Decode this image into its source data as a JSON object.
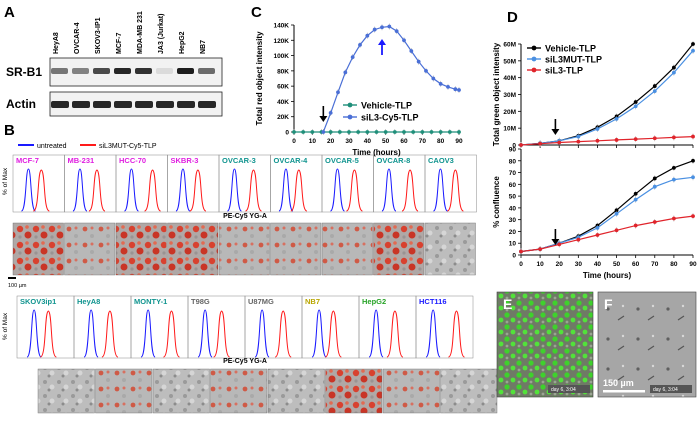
{
  "panel_letters": {
    "A": "A",
    "B": "B",
    "C": "C",
    "D": "D",
    "E": "E",
    "F": "F"
  },
  "panel_a": {
    "lanes": [
      "HeyA8",
      "OVCAR-4",
      "SKOV3-IP1",
      "MCF-7",
      "MDA-MB 231",
      "JA3 (Jurkat)",
      "HepG2",
      "NB7"
    ],
    "rows": [
      "SR-B1",
      "Actin"
    ]
  },
  "panel_b": {
    "legend": [
      {
        "label": "untreated",
        "color": "#1a1aff"
      },
      {
        "label": "siL3MUT-Cy5-TLP",
        "color": "#ff1a1a"
      }
    ],
    "y_label": "% of Max",
    "x_label": "PE-Cy5 YG-A",
    "top_cells": [
      {
        "name": "MCF-7",
        "color": "#e01ee0"
      },
      {
        "name": "MB-231",
        "color": "#e01ee0"
      },
      {
        "name": "HCC-70",
        "color": "#e01ee0"
      },
      {
        "name": "SKBR-3",
        "color": "#e01ee0"
      },
      {
        "name": "OVCAR-3",
        "color": "#10948f"
      },
      {
        "name": "OVCAR-4",
        "color": "#10948f"
      },
      {
        "name": "OVCAR-5",
        "color": "#10948f"
      },
      {
        "name": "OVCAR-8",
        "color": "#10948f"
      },
      {
        "name": "CAOV3",
        "color": "#10948f"
      }
    ],
    "bottom_cells": [
      {
        "name": "SKOV3ip1",
        "color": "#10948f"
      },
      {
        "name": "HeyA8",
        "color": "#10948f"
      },
      {
        "name": "MONTY-1",
        "color": "#10948f"
      },
      {
        "name": "T98G",
        "color": "#666666"
      },
      {
        "name": "U87MG",
        "color": "#666666"
      },
      {
        "name": "NB7",
        "color": "#b8a600"
      },
      {
        "name": "HepG2",
        "color": "#27a327"
      },
      {
        "name": "HCT116",
        "color": "#1a1aff"
      }
    ],
    "scale_label": "100 µm"
  },
  "chart_data": [
    {
      "id": "C",
      "type": "line",
      "xlabel": "Time (hours)",
      "ylabel": "Total red object intensity",
      "xlim": [
        0,
        90
      ],
      "ylim": [
        0,
        140000
      ],
      "x_ticks": [
        "0",
        "10",
        "20",
        "30",
        "40",
        "50",
        "60",
        "70",
        "80",
        "90"
      ],
      "y_ticks": [
        "0",
        "20K",
        "40K",
        "60K",
        "80K",
        "100K",
        "120K",
        "140K"
      ],
      "legend": "bottom-right",
      "series": [
        {
          "name": "Vehicle-TLP",
          "color": "#1f8f7a",
          "x": [
            0,
            5,
            10,
            15,
            20,
            25,
            30,
            35,
            40,
            45,
            50,
            55,
            60,
            65,
            70,
            75,
            80,
            85,
            90
          ],
          "y": [
            0,
            0,
            0,
            0,
            0,
            0,
            0,
            0,
            0,
            0,
            0,
            0,
            0,
            0,
            0,
            0,
            0,
            0,
            0
          ]
        },
        {
          "name": "siL3-Cy5-TLP",
          "color": "#4a6fd6",
          "x": [
            16,
            20,
            24,
            28,
            32,
            36,
            40,
            44,
            48,
            52,
            56,
            60,
            64,
            68,
            72,
            76,
            80,
            84,
            88,
            90
          ],
          "y": [
            0,
            25000,
            52000,
            78000,
            98000,
            114000,
            126000,
            134000,
            137000,
            138000,
            132000,
            120000,
            106000,
            92000,
            80000,
            70000,
            63000,
            59000,
            56000,
            55000
          ]
        }
      ],
      "annotations": [
        {
          "type": "arrow",
          "x": 16,
          "direction": "down"
        },
        {
          "type": "arrow",
          "x": 48,
          "direction": "up"
        }
      ]
    },
    {
      "id": "D-top",
      "type": "line",
      "ylabel": "Total green object intensity",
      "xlim": [
        0,
        90
      ],
      "ylim": [
        0,
        60000000
      ],
      "y_ticks": [
        "0",
        "10M",
        "20M",
        "30M",
        "40M",
        "50M",
        "60M"
      ],
      "legend": "top-left",
      "series": [
        {
          "name": "Vehicle-TLP",
          "color": "#000000",
          "x": [
            0,
            10,
            20,
            30,
            40,
            50,
            60,
            70,
            80,
            90
          ],
          "y": [
            0,
            1000000,
            2500000,
            5500000,
            10500000,
            17000000,
            25500000,
            35000000,
            46000000,
            60000000
          ]
        },
        {
          "name": "siL3MUT-TLP",
          "color": "#4a90e2",
          "x": [
            0,
            10,
            20,
            30,
            40,
            50,
            60,
            70,
            80,
            90
          ],
          "y": [
            0,
            1000000,
            2500000,
            5000000,
            9500000,
            15500000,
            23000000,
            32000000,
            43000000,
            56000000
          ]
        },
        {
          "name": "siL3-TLP",
          "color": "#e0242b",
          "x": [
            0,
            10,
            20,
            30,
            40,
            50,
            60,
            70,
            80,
            90
          ],
          "y": [
            0,
            800000,
            1500000,
            2000000,
            2500000,
            3000000,
            3500000,
            4000000,
            4500000,
            5000000
          ]
        }
      ],
      "annotations": [
        {
          "type": "arrow",
          "x": 18,
          "direction": "down"
        }
      ]
    },
    {
      "id": "D-bottom",
      "type": "line",
      "xlabel": "Time (hours)",
      "ylabel": "% confluence",
      "xlim": [
        0,
        90
      ],
      "ylim": [
        0,
        90
      ],
      "x_ticks": [
        "0",
        "10",
        "20",
        "30",
        "40",
        "50",
        "60",
        "70",
        "80",
        "90"
      ],
      "y_ticks": [
        "0",
        "10",
        "20",
        "30",
        "40",
        "50",
        "60",
        "70",
        "80",
        "90"
      ],
      "series": [
        {
          "name": "Vehicle-TLP",
          "color": "#000000",
          "x": [
            0,
            10,
            20,
            30,
            40,
            50,
            60,
            70,
            80,
            90
          ],
          "y": [
            3,
            5,
            10,
            16,
            25,
            38,
            52,
            65,
            74,
            80
          ]
        },
        {
          "name": "siL3MUT-TLP",
          "color": "#4a90e2",
          "x": [
            0,
            10,
            20,
            30,
            40,
            50,
            60,
            70,
            80,
            90
          ],
          "y": [
            3,
            5,
            10,
            15,
            23,
            35,
            47,
            58,
            64,
            66
          ]
        },
        {
          "name": "siL3-TLP",
          "color": "#e0242b",
          "x": [
            0,
            10,
            20,
            30,
            40,
            50,
            60,
            70,
            80,
            90
          ],
          "y": [
            3,
            5,
            9,
            13,
            17,
            21,
            25,
            28,
            31,
            33
          ]
        }
      ],
      "annotations": [
        {
          "type": "arrow",
          "x": 18,
          "direction": "down"
        }
      ]
    }
  ],
  "panel_e": {
    "stamp": "day 6, 3:04"
  },
  "panel_f": {
    "stamp": "day 6, 3:04",
    "scale_label": "150 µm"
  }
}
